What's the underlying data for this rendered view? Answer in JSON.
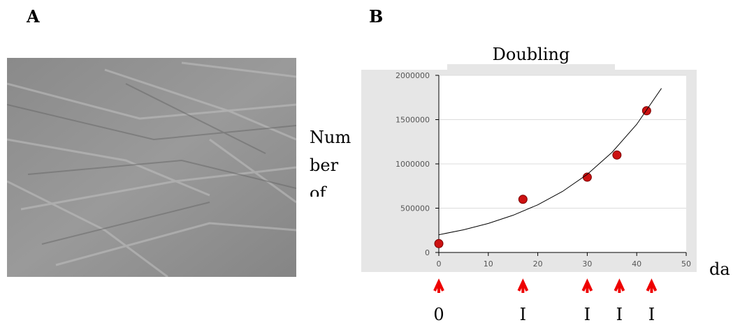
{
  "panel_labels": [
    "A",
    "B"
  ],
  "chart_data": {
    "type": "scatter",
    "title": "Doubling",
    "ylabel_lines": [
      "Num",
      "ber",
      "of"
    ],
    "xlabel": "da",
    "xlim": [
      0,
      50
    ],
    "xticks": [
      0,
      10,
      20,
      30,
      40,
      50
    ],
    "ylim": [
      0,
      2000000
    ],
    "yticks": [
      0,
      500000,
      1000000,
      1500000,
      2000000
    ],
    "grid": true,
    "series": [
      {
        "color": "#cc1111",
        "x": [
          0,
          17,
          30,
          36,
          42
        ],
        "values": [
          100000,
          600000,
          850000,
          1100000,
          1600000
        ]
      },
      {
        "type": "line",
        "color": "#000000",
        "x": [
          0,
          5,
          10,
          15,
          20,
          25,
          30,
          35,
          40,
          45
        ],
        "values": [
          200000,
          256000,
          328000,
          420000,
          538000,
          689000,
          882000,
          1130000,
          1447000,
          1853000
        ]
      }
    ],
    "arrow_color": "#ee0000",
    "arrow_annotations": [
      {
        "x": 0,
        "label": "0"
      },
      {
        "x": 17,
        "label": "I"
      },
      {
        "x": 30,
        "label": "I"
      },
      {
        "x": 36.5,
        "label": "I"
      },
      {
        "x": 43,
        "label": "I"
      }
    ]
  }
}
